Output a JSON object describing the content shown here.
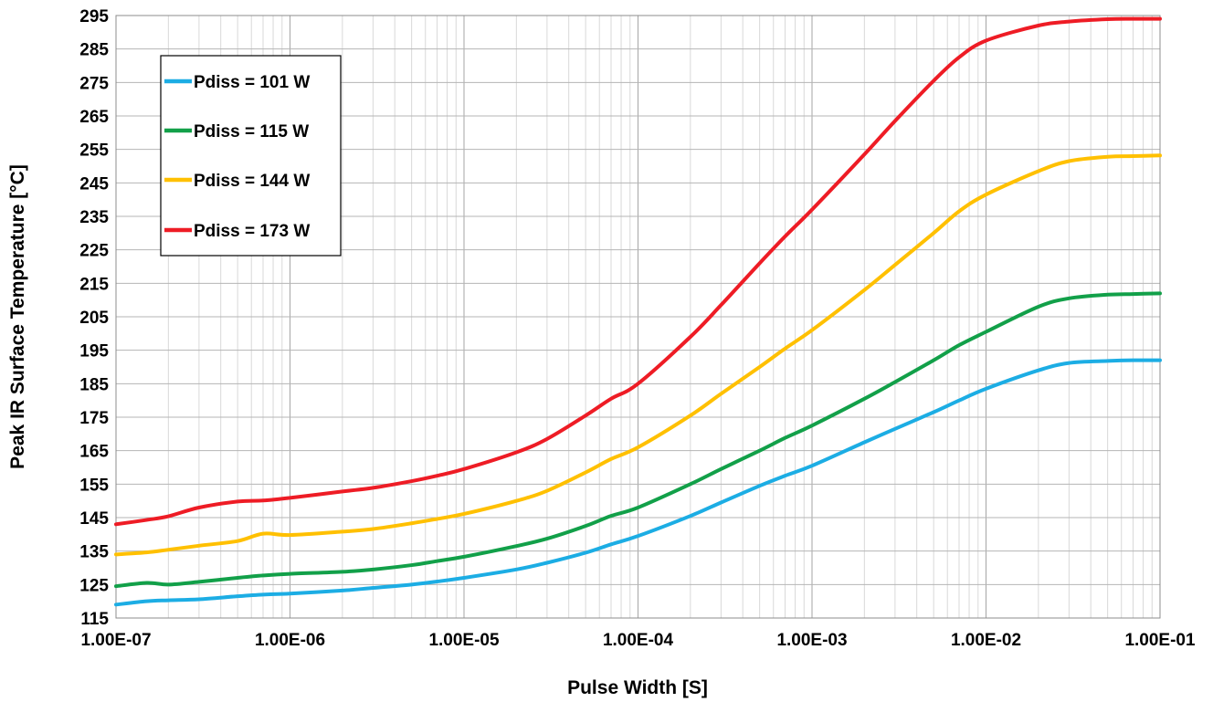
{
  "chart_data": {
    "type": "line",
    "title": "",
    "xlabel": "Pulse Width [S]",
    "ylabel": "Peak IR Surface Temperature [°C]",
    "x_scale": "log",
    "xlim": [
      1e-07,
      0.1
    ],
    "ylim": [
      115,
      295
    ],
    "x_ticks": [
      "1.00E-07",
      "1.00E-06",
      "1.00E-05",
      "1.00E-04",
      "1.00E-03",
      "1.00E-02",
      "1.00E-01"
    ],
    "x_tick_values": [
      1e-07,
      1e-06,
      1e-05,
      0.0001,
      0.001,
      0.01,
      0.1
    ],
    "y_ticks": [
      115,
      125,
      135,
      145,
      155,
      165,
      175,
      185,
      195,
      205,
      215,
      225,
      235,
      245,
      255,
      265,
      275,
      285,
      295
    ],
    "grid": true,
    "legend_position": "top-left",
    "x": [
      1e-07,
      1.5e-07,
      2e-07,
      3e-07,
      5e-07,
      7e-07,
      1e-06,
      2e-06,
      3e-06,
      5e-06,
      7e-06,
      1e-05,
      2e-05,
      3e-05,
      5e-05,
      7e-05,
      0.0001,
      0.0002,
      0.0003,
      0.0005,
      0.0007,
      0.001,
      0.002,
      0.003,
      0.005,
      0.007,
      0.01,
      0.02,
      0.03,
      0.05,
      0.07,
      0.1
    ],
    "series": [
      {
        "name": "Pdiss = 101 W",
        "color": "#1CADE4",
        "values": [
          119,
          120,
          120.3,
          120.6,
          121.5,
          122,
          122.3,
          123.2,
          124,
          125,
          125.9,
          127,
          129.5,
          131.5,
          134.5,
          137,
          139.5,
          145.5,
          149.5,
          154.5,
          157.5,
          160.5,
          167.5,
          171.5,
          176.5,
          180,
          183.5,
          189,
          191.2,
          191.8,
          192,
          192
        ]
      },
      {
        "name": "Pdiss = 115 W",
        "color": "#12A049",
        "values": [
          124.5,
          125.5,
          125,
          125.8,
          127,
          127.7,
          128.2,
          128.8,
          129.5,
          130.8,
          132,
          133.3,
          136.5,
          138.7,
          142.5,
          145.5,
          148,
          155,
          159.5,
          165,
          168.8,
          172.5,
          180.5,
          185.5,
          192,
          196.5,
          200.5,
          208,
          210.5,
          211.6,
          211.8,
          212
        ]
      },
      {
        "name": "Pdiss = 144 W",
        "color": "#FFC000",
        "values": [
          134,
          134.6,
          135.4,
          136.6,
          138,
          140.2,
          139.8,
          140.8,
          141.6,
          143.3,
          144.6,
          146.1,
          150,
          153,
          158.5,
          162.5,
          166,
          175.5,
          182,
          190,
          195.5,
          201,
          213,
          220.5,
          230,
          236.5,
          241.5,
          248.5,
          251.5,
          252.8,
          253,
          253.2
        ]
      },
      {
        "name": "Pdiss = 173 W",
        "color": "#EE1C25",
        "values": [
          143,
          144.3,
          145.4,
          148,
          149.8,
          150.1,
          150.9,
          152.8,
          153.9,
          155.9,
          157.5,
          159.5,
          164.5,
          168.5,
          175.5,
          180.5,
          185,
          199,
          208.5,
          221,
          229,
          237,
          253.5,
          263.5,
          275.5,
          282.5,
          287.5,
          292,
          293.2,
          293.9,
          294,
          294
        ]
      }
    ]
  }
}
